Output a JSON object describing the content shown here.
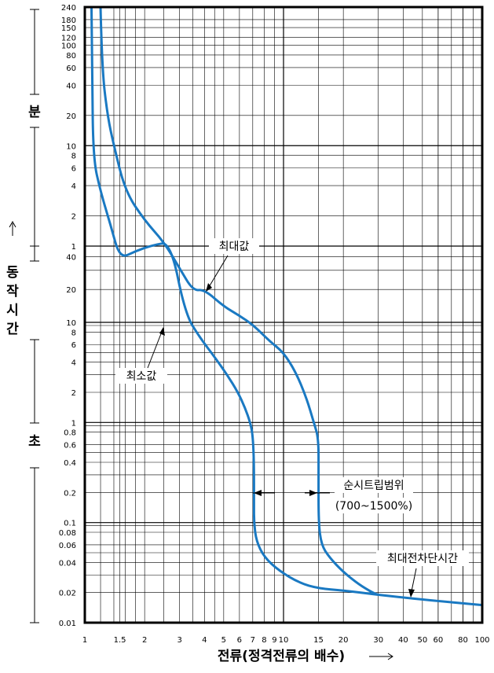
{
  "chart_data": {
    "type": "line",
    "x_scale": "log",
    "y_scale": "log",
    "xlim": [
      1,
      100
    ],
    "xlabel": "전류(정격전류의 배수)",
    "x_ticks": [
      1,
      1.5,
      2,
      3,
      4,
      5,
      6,
      7,
      8,
      9,
      10,
      15,
      20,
      30,
      40,
      50,
      60,
      80,
      100
    ],
    "y_bands": [
      {
        "label": "분",
        "ticks": [
          {
            "v": 1,
            "t": "1"
          },
          {
            "v": 2,
            "t": "2"
          },
          {
            "v": 4,
            "t": "4"
          },
          {
            "v": 6,
            "t": "6"
          },
          {
            "v": 8,
            "t": "8"
          },
          {
            "v": 10,
            "t": "10"
          },
          {
            "v": 20,
            "t": "20"
          },
          {
            "v": 40,
            "t": "40"
          },
          {
            "v": 60,
            "t": "60"
          },
          {
            "v": 80,
            "t": "80"
          },
          {
            "v": 100,
            "t": "100"
          },
          {
            "v": 120,
            "t": "120"
          },
          {
            "v": 150,
            "t": "150"
          },
          {
            "v": 180,
            "t": "180"
          },
          {
            "v": 240,
            "t": "240"
          }
        ]
      },
      {
        "label": "초",
        "ticks": [
          {
            "v": 0.01,
            "t": "0.01"
          },
          {
            "v": 0.02,
            "t": "0.02"
          },
          {
            "v": 0.04,
            "t": "0.04"
          },
          {
            "v": 0.06,
            "t": "0.06"
          },
          {
            "v": 0.08,
            "t": "0.08"
          },
          {
            "v": 0.1,
            "t": "0.1"
          },
          {
            "v": 0.2,
            "t": "0.2"
          },
          {
            "v": 0.4,
            "t": "0.4"
          },
          {
            "v": 0.6,
            "t": "0.6"
          },
          {
            "v": 0.8,
            "t": "0.8"
          },
          {
            "v": 1,
            "t": "1"
          },
          {
            "v": 2,
            "t": "2"
          },
          {
            "v": 4,
            "t": "4"
          },
          {
            "v": 6,
            "t": "6"
          },
          {
            "v": 8,
            "t": "8"
          },
          {
            "v": 10,
            "t": "10"
          },
          {
            "v": 20,
            "t": "20"
          },
          {
            "v": 40,
            "t": "40"
          }
        ]
      }
    ],
    "ylabel": "동작시간",
    "series": [
      {
        "name": "최소값",
        "points": [
          [
            1.08,
            240
          ],
          [
            1.09,
            60
          ],
          [
            1.1,
            7.5
          ],
          [
            1.2,
            3.5
          ],
          [
            1.35,
            1.6
          ],
          [
            1.5,
            0.75
          ],
          [
            1.8,
            0.5
          ],
          [
            2.2,
            0.3
          ],
          [
            2.7,
            0.18
          ],
          [
            3.2,
            12
          ],
          [
            3.8,
            7
          ],
          [
            4.5,
            4.5
          ],
          [
            5.2,
            3
          ],
          [
            5.9,
            2
          ],
          [
            6.4,
            1.4
          ],
          [
            6.8,
            1
          ],
          [
            7,
            0.75
          ],
          [
            7.1,
            0.4
          ],
          [
            7.1,
            0.15
          ],
          [
            7.1,
            0.1
          ],
          [
            7.3,
            0.065
          ],
          [
            8,
            0.045
          ],
          [
            9.5,
            0.033
          ],
          [
            12,
            0.025
          ],
          [
            15,
            0.022
          ],
          [
            20,
            0.021
          ],
          [
            30,
            0.019
          ]
        ]
      },
      {
        "name": "최대값",
        "points": [
          [
            1.2,
            240
          ],
          [
            1.22,
            60
          ],
          [
            1.3,
            20
          ],
          [
            1.4,
            10
          ],
          [
            1.6,
            3.5
          ],
          [
            2,
            1.8
          ],
          [
            2.5,
            1.1
          ],
          [
            3,
            0.6
          ],
          [
            3.5,
            0.36
          ],
          [
            4,
            20
          ],
          [
            5,
            14
          ],
          [
            6,
            11.5
          ],
          [
            7,
            9.5
          ],
          [
            8.5,
            6.5
          ],
          [
            10,
            5
          ],
          [
            11.5,
            3.2
          ],
          [
            13,
            1.8
          ],
          [
            14.2,
            1
          ],
          [
            15,
            0.7
          ],
          [
            15,
            0.3
          ],
          [
            15,
            0.1
          ],
          [
            15.5,
            0.06
          ],
          [
            17,
            0.045
          ],
          [
            20,
            0.032
          ],
          [
            24,
            0.024
          ],
          [
            28,
            0.02
          ],
          [
            30,
            0.019
          ]
        ]
      },
      {
        "name": "최대전차단시간",
        "points": [
          [
            30,
            0.019
          ],
          [
            50,
            0.017
          ],
          [
            100,
            0.015
          ]
        ]
      }
    ],
    "annotations": [
      "최대값",
      "최소값",
      "순시트립범위",
      "(700~1500%)",
      "최대전차단시간"
    ]
  }
}
